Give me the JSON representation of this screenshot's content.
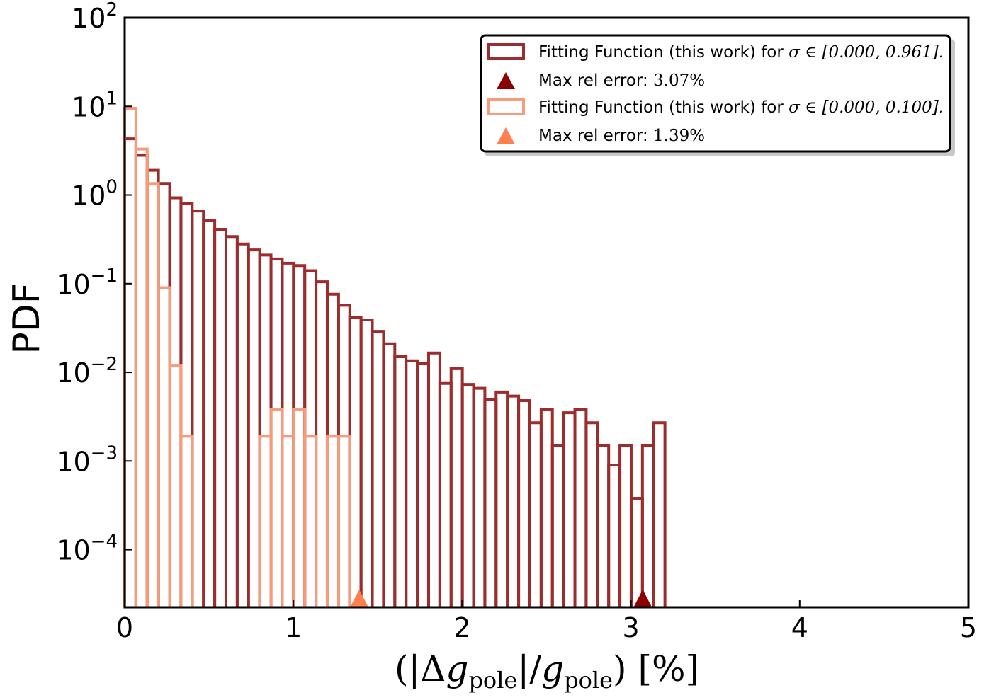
{
  "chart_data": {
    "type": "histogram",
    "ylabel": "PDF",
    "xlabel": {
      "open": "(|Δ",
      "g": "g",
      "sub": "pole",
      "mid": "|/",
      "close": ")",
      "unit": "[%]"
    },
    "xlim": [
      0,
      5
    ],
    "ylim_log10": [
      -4.65,
      2
    ],
    "y_scale": "log",
    "x_ticks": [
      "0",
      "1",
      "2",
      "3",
      "4",
      "5"
    ],
    "x_tick_values": [
      0,
      1,
      2,
      3,
      4,
      5
    ],
    "y_ticks": [
      {
        "base": "10",
        "exp": "2",
        "value": 2
      },
      {
        "base": "10",
        "exp": "1",
        "value": 1
      },
      {
        "base": "10",
        "exp": "0",
        "value": 0
      },
      {
        "base": "10",
        "exp": "−1",
        "value": -1
      },
      {
        "base": "10",
        "exp": "−2",
        "value": -2
      },
      {
        "base": "10",
        "exp": "−3",
        "value": -3
      },
      {
        "base": "10",
        "exp": "−4",
        "value": -4
      }
    ],
    "legend_position": "top-right",
    "bin_width": 0.0667,
    "series": [
      {
        "key": "dark",
        "color": "#9b2d2d",
        "values": [
          4.3,
          2.8,
          1.9,
          1.35,
          0.93,
          0.8,
          0.66,
          0.52,
          0.41,
          0.34,
          0.28,
          0.24,
          0.21,
          0.19,
          0.17,
          0.16,
          0.14,
          0.105,
          0.076,
          0.057,
          0.042,
          0.039,
          0.029,
          0.021,
          0.015,
          0.0135,
          0.0125,
          0.0165,
          0.0075,
          0.011,
          0.0073,
          0.0066,
          0.0049,
          0.006,
          0.0054,
          0.0048,
          0.0027,
          0.0038,
          0.0015,
          0.0035,
          0.0038,
          0.0027,
          0.0015,
          0.0009,
          0.0015,
          0.00038,
          0.0015,
          0.0027
        ],
        "marker_x": 3.07
      },
      {
        "key": "light",
        "color": "#f79b7a",
        "values": [
          9.5,
          3.3,
          1.35,
          0.09,
          0.012,
          0.0019,
          null,
          null,
          null,
          null,
          null,
          null,
          0.0019,
          0.0038,
          0.0019,
          0.0038,
          0.0019,
          null,
          0.0019,
          0.0019
        ],
        "marker_x": 1.39
      }
    ],
    "legend": [
      {
        "type": "line",
        "color": "#9b2d2d",
        "text": "Fitting Function (this work) for ",
        "math": "σ ∈ [0.000, 0.961]."
      },
      {
        "type": "marker",
        "color": "#8b0000",
        "text": "Max rel error: ",
        "math": "3.07%"
      },
      {
        "type": "line",
        "color": "#f79b7a",
        "text": "Fitting Function (this work) for ",
        "math": "σ ∈ [0.000, 0.100]."
      },
      {
        "type": "marker",
        "color": "#ff7f50",
        "text": "Max rel error: ",
        "math": "1.39%"
      }
    ]
  }
}
